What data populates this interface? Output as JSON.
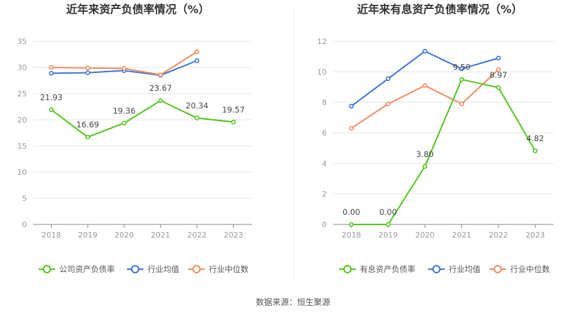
{
  "footer": {
    "source": "数据来源：恒生聚源"
  },
  "chart_data": [
    {
      "type": "line",
      "title": "近年来资产负债率情况（%）",
      "categories": [
        "2018",
        "2019",
        "2020",
        "2021",
        "2022",
        "2023"
      ],
      "ylim": [
        0,
        35
      ],
      "yticks": [
        0,
        5,
        10,
        15,
        20,
        25,
        30,
        35
      ],
      "grid": true,
      "legend_position": "bottom",
      "series": [
        {
          "name": "公司资产负债率",
          "color": "#52c41a",
          "labeled": true,
          "values": [
            21.93,
            16.69,
            19.36,
            23.67,
            20.34,
            19.57
          ],
          "labels": [
            "21.93",
            "16.69",
            "19.36",
            "23.67",
            "20.34",
            "19.57"
          ]
        },
        {
          "name": "行业均值",
          "color": "#3a74d8",
          "labeled": false,
          "values": [
            28.9,
            29.0,
            29.4,
            28.5,
            31.3,
            null
          ]
        },
        {
          "name": "行业中位数",
          "color": "#f08a5d",
          "labeled": false,
          "values": [
            30.0,
            29.9,
            29.8,
            28.6,
            33.0,
            null
          ]
        }
      ]
    },
    {
      "type": "line",
      "title": "近年来有息资产负债率情况（%）",
      "categories": [
        "2018",
        "2019",
        "2020",
        "2021",
        "2022",
        "2023"
      ],
      "ylim": [
        0,
        12
      ],
      "yticks": [
        0,
        2,
        4,
        6,
        8,
        10,
        12
      ],
      "grid": true,
      "legend_position": "bottom",
      "series": [
        {
          "name": "有息资产负债率",
          "color": "#52c41a",
          "labeled": true,
          "values": [
            0.0,
            0.0,
            3.8,
            9.5,
            8.97,
            4.82
          ],
          "labels": [
            "0.00",
            "0.00",
            "3.80",
            "9.50",
            "8.97",
            "4.82"
          ]
        },
        {
          "name": "行业均值",
          "color": "#3a74d8",
          "labeled": false,
          "values": [
            7.75,
            9.55,
            11.35,
            10.2,
            10.9,
            null
          ]
        },
        {
          "name": "行业中位数",
          "color": "#f08a5d",
          "labeled": false,
          "values": [
            6.3,
            7.9,
            9.1,
            7.9,
            10.15,
            null
          ]
        }
      ]
    }
  ]
}
